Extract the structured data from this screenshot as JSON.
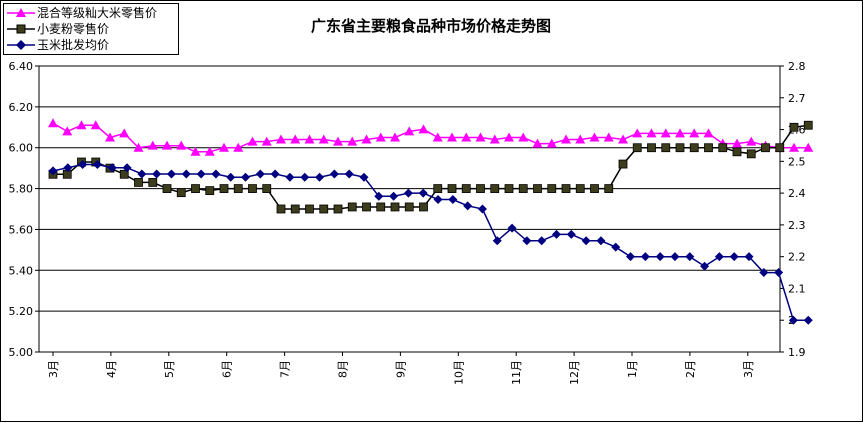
{
  "chart_data": {
    "type": "line",
    "title": "广东省主要粮食品种市场价格走势图",
    "x_tick_labels": [
      "3月",
      "4月",
      "5月",
      "6月",
      "7月",
      "8月",
      "9月",
      "10月",
      "11月",
      "12月",
      "1月",
      "2月",
      "3月"
    ],
    "y_left": {
      "ylim": [
        5.0,
        6.4
      ],
      "ticks": [
        "5.00",
        "5.20",
        "5.40",
        "5.60",
        "5.80",
        "6.00",
        "6.20",
        "6.40"
      ]
    },
    "y_right": {
      "ylim": [
        1.9,
        2.8
      ],
      "ticks": [
        "1.9",
        "2",
        "2.1",
        "2.2",
        "2.3",
        "2.4",
        "2.5",
        "2.6",
        "2.7",
        "2.8"
      ]
    },
    "gridlines": "horizontal",
    "legend_position": "top-left",
    "series": [
      {
        "name": "混合等级籼大米零售价",
        "axis": "left",
        "color": "#ff00ff",
        "marker": "triangle",
        "values": [
          6.12,
          6.08,
          6.11,
          6.11,
          6.05,
          6.07,
          6.0,
          6.01,
          6.01,
          6.01,
          5.98,
          5.98,
          6.0,
          6.0,
          6.03,
          6.03,
          6.04,
          6.04,
          6.04,
          6.04,
          6.03,
          6.03,
          6.04,
          6.05,
          6.05,
          6.08,
          6.09,
          6.05,
          6.05,
          6.05,
          6.05,
          6.04,
          6.05,
          6.05,
          6.02,
          6.02,
          6.04,
          6.04,
          6.05,
          6.05,
          6.04,
          6.07,
          6.07,
          6.07,
          6.07,
          6.07,
          6.07,
          6.02,
          6.02,
          6.03,
          6.01,
          6.0,
          6.0,
          6.0
        ]
      },
      {
        "name": "小麦粉零售价",
        "axis": "left",
        "color": "#000000",
        "marker_color": "#3d3d1e",
        "marker": "square",
        "values": [
          5.87,
          5.87,
          5.93,
          5.93,
          5.9,
          5.87,
          5.83,
          5.83,
          5.8,
          5.78,
          5.8,
          5.79,
          5.8,
          5.8,
          5.8,
          5.8,
          5.7,
          5.7,
          5.7,
          5.7,
          5.7,
          5.71,
          5.71,
          5.71,
          5.71,
          5.71,
          5.71,
          5.8,
          5.8,
          5.8,
          5.8,
          5.8,
          5.8,
          5.8,
          5.8,
          5.8,
          5.8,
          5.8,
          5.8,
          5.8,
          5.92,
          6.0,
          6.0,
          6.0,
          6.0,
          6.0,
          6.0,
          6.0,
          5.98,
          5.97,
          6.0,
          6.0,
          6.1,
          6.11
        ]
      },
      {
        "name": "玉米批发均价",
        "axis": "right",
        "color": "#000080",
        "marker": "diamond",
        "values": [
          2.47,
          2.48,
          2.49,
          2.49,
          2.48,
          2.48,
          2.46,
          2.46,
          2.46,
          2.46,
          2.46,
          2.46,
          2.45,
          2.45,
          2.46,
          2.46,
          2.45,
          2.45,
          2.45,
          2.46,
          2.46,
          2.45,
          2.39,
          2.39,
          2.4,
          2.4,
          2.38,
          2.38,
          2.36,
          2.35,
          2.25,
          2.29,
          2.25,
          2.25,
          2.27,
          2.27,
          2.25,
          2.25,
          2.23,
          2.2,
          2.2,
          2.2,
          2.2,
          2.2,
          2.17,
          2.2,
          2.2,
          2.2,
          2.15,
          2.15,
          2.0,
          2.0
        ]
      }
    ]
  }
}
